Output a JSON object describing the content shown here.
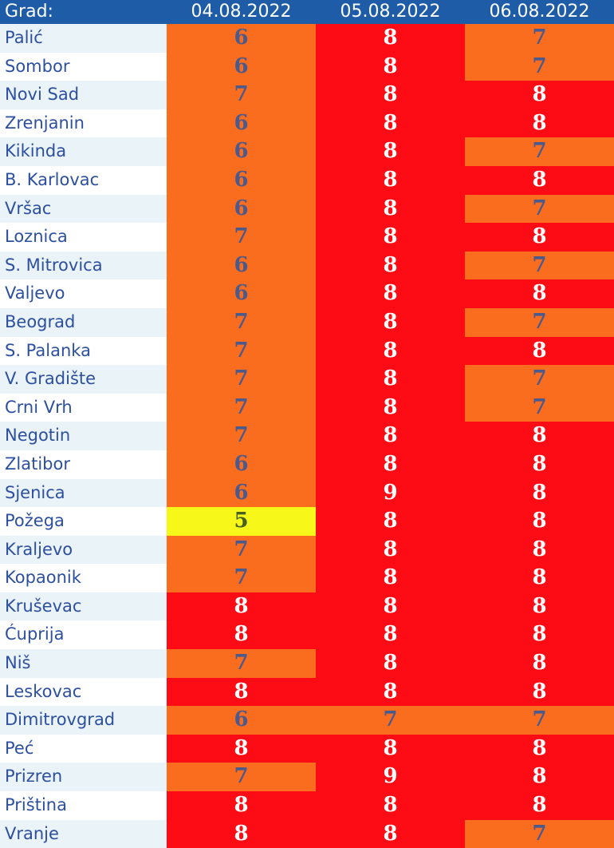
{
  "header": {
    "city_label": "Grad:",
    "dates": [
      "04.08.2022",
      "05.08.2022",
      "06.08.2022"
    ]
  },
  "rows": [
    {
      "city": "Palić",
      "values": [
        "6",
        "8",
        "7"
      ]
    },
    {
      "city": "Sombor",
      "values": [
        "6",
        "8",
        "7"
      ]
    },
    {
      "city": "Novi Sad",
      "values": [
        "7",
        "8",
        "8"
      ]
    },
    {
      "city": "Zrenjanin",
      "values": [
        "6",
        "8",
        "8"
      ]
    },
    {
      "city": "Kikinda",
      "values": [
        "6",
        "8",
        "7"
      ]
    },
    {
      "city": "B. Karlovac",
      "values": [
        "6",
        "8",
        "8"
      ]
    },
    {
      "city": "Vršac",
      "values": [
        "6",
        "8",
        "7"
      ]
    },
    {
      "city": "Loznica",
      "values": [
        "7",
        "8",
        "8"
      ]
    },
    {
      "city": "S. Mitrovica",
      "values": [
        "6",
        "8",
        "7"
      ]
    },
    {
      "city": "Valjevo",
      "values": [
        "6",
        "8",
        "8"
      ]
    },
    {
      "city": "Beograd",
      "values": [
        "7",
        "8",
        "7"
      ]
    },
    {
      "city": "S. Palanka",
      "values": [
        "7",
        "8",
        "8"
      ]
    },
    {
      "city": "V. Gradište",
      "values": [
        "7",
        "8",
        "7"
      ]
    },
    {
      "city": "Crni Vrh",
      "values": [
        "7",
        "8",
        "7"
      ]
    },
    {
      "city": "Negotin",
      "values": [
        "7",
        "8",
        "8"
      ]
    },
    {
      "city": "Zlatibor",
      "values": [
        "6",
        "8",
        "8"
      ]
    },
    {
      "city": "Sjenica",
      "values": [
        "6",
        "9",
        "8"
      ]
    },
    {
      "city": "Požega",
      "values": [
        "5",
        "8",
        "8"
      ]
    },
    {
      "city": "Kraljevo",
      "values": [
        "7",
        "8",
        "8"
      ]
    },
    {
      "city": "Kopaonik",
      "values": [
        "7",
        "8",
        "8"
      ]
    },
    {
      "city": "Kruševac",
      "values": [
        "8",
        "8",
        "8"
      ]
    },
    {
      "city": "Ćuprija",
      "values": [
        "8",
        "8",
        "8"
      ]
    },
    {
      "city": "Niš",
      "values": [
        "7",
        "8",
        "8"
      ]
    },
    {
      "city": "Leskovac",
      "values": [
        "8",
        "8",
        "8"
      ]
    },
    {
      "city": "Dimitrovgrad",
      "values": [
        "6",
        "7",
        "7"
      ]
    },
    {
      "city": "Peć",
      "values": [
        "8",
        "8",
        "8"
      ]
    },
    {
      "city": "Prizren",
      "values": [
        "7",
        "9",
        "8"
      ]
    },
    {
      "city": "Priština",
      "values": [
        "8",
        "8",
        "8"
      ]
    },
    {
      "city": "Vranje",
      "values": [
        "8",
        "8",
        "7"
      ]
    }
  ],
  "colors": {
    "header_bg": "#1e5ca8",
    "level_5": "#f7f71a",
    "level_6_7": "#fa6c1e",
    "level_8_9": "#fd0c15",
    "city_text": "#2c4fa0"
  }
}
